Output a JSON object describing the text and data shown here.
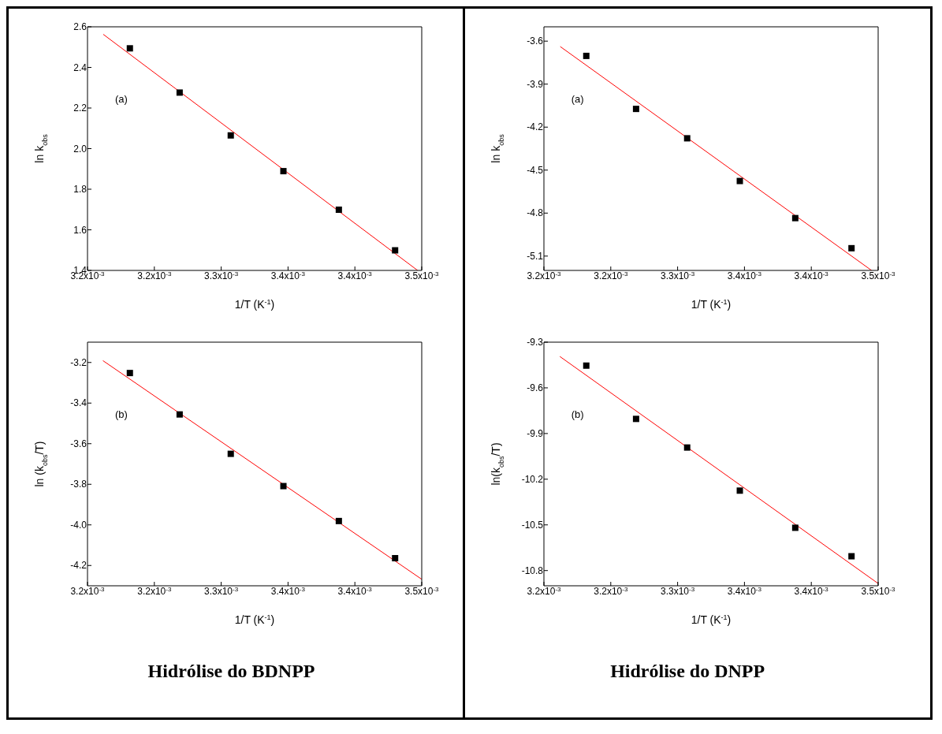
{
  "chart_data": [
    {
      "type": "scatter",
      "xlabel": "1/T (K$^{-1}$)",
      "ylabel": "ln k$_{obs}$",
      "annotations": [
        "(a)"
      ],
      "xlim": [
        0.00318,
        0.003505
      ],
      "xticks": [
        {
          "value": 0.00318,
          "label": "3.2x10$^{-3}$"
        },
        {
          "value": 0.003245,
          "label": "3.2x10$^{-3}$"
        },
        {
          "value": 0.00331,
          "label": "3.3x10$^{-3}$"
        },
        {
          "value": 0.003375,
          "label": "3.4x10$^{-3}$"
        },
        {
          "value": 0.00344,
          "label": "3.4x10$^{-3}$"
        },
        {
          "value": 0.003505,
          "label": "3.5x10$^{-3}$"
        }
      ],
      "ylim": [
        1.4,
        2.6
      ],
      "yticks": [
        1.4,
        1.6,
        1.8,
        {
          "value": 2.0,
          "label": "2.0"
        },
        2.2,
        2.4,
        2.6
      ],
      "grid": false,
      "series": [
        {
          "type": "scatter",
          "marker": "square",
          "color": "#000000",
          "x": [
            0.0032212,
            0.0032696,
            0.0033193,
            0.0033705,
            0.0034244,
            0.0034791
          ],
          "values": [
            2.494,
            2.276,
            2.065,
            1.889,
            1.699,
            1.499
          ]
        },
        {
          "type": "line",
          "color": "#ff0000",
          "x": [
            0.0031953,
            0.003501
          ],
          "values": [
            2.563,
            1.4
          ]
        }
      ]
    },
    {
      "type": "scatter",
      "xlabel": "1/T (K$^{-1}$)",
      "ylabel": "ln (k$_{obs}$/T)",
      "annotations": [
        "(b)",
        "Hidrólise do BDNPP"
      ],
      "xlim": [
        0.00318,
        0.003505
      ],
      "xticks": [
        {
          "value": 0.00318,
          "label": "3.2x10$^{-3}$"
        },
        {
          "value": 0.003245,
          "label": "3.2x10$^{-3}$"
        },
        {
          "value": 0.00331,
          "label": "3.3x10$^{-3}$"
        },
        {
          "value": 0.003375,
          "label": "3.4x10$^{-3}$"
        },
        {
          "value": 0.00344,
          "label": "3.4x10$^{-3}$"
        },
        {
          "value": 0.003505,
          "label": "3.5x10$^{-3}$"
        }
      ],
      "ylim": [
        -4.3,
        -3.1
      ],
      "yticks": [
        -4.2,
        {
          "value": -4.0,
          "label": "-4.0"
        },
        -3.8,
        -3.6,
        -3.4,
        -3.2
      ],
      "grid": false,
      "series": [
        {
          "type": "scatter",
          "marker": "square",
          "color": "#000000",
          "x": [
            0.0032212,
            0.0032696,
            0.0033193,
            0.0033705,
            0.0034244,
            0.0034791
          ],
          "values": [
            -3.252,
            -3.456,
            -3.65,
            -3.809,
            -3.981,
            -4.164
          ]
        },
        {
          "type": "line",
          "color": "#ff0000",
          "x": [
            0.003195,
            0.003505
          ],
          "values": [
            -3.191,
            -4.268
          ]
        }
      ]
    },
    {
      "type": "scatter",
      "xlabel": "1/T (K$^{-1}$)",
      "ylabel": "ln k$_{obs}$",
      "annotations": [
        "(a)"
      ],
      "xlim": [
        0.00318,
        0.003505
      ],
      "xticks": [
        {
          "value": 0.00318,
          "label": "3.2x10$^{-3}$"
        },
        {
          "value": 0.003245,
          "label": "3.2x10$^{-3}$"
        },
        {
          "value": 0.00331,
          "label": "3.3x10$^{-3}$"
        },
        {
          "value": 0.003375,
          "label": "3.4x10$^{-3}$"
        },
        {
          "value": 0.00344,
          "label": "3.4x10$^{-3}$"
        },
        {
          "value": 0.003505,
          "label": "3.5x10$^{-3}$"
        }
      ],
      "ylim": [
        -5.2,
        -3.5
      ],
      "yticks": [
        -5.1,
        -4.8,
        -4.5,
        -4.2,
        -3.9,
        -3.6
      ],
      "grid": false,
      "series": [
        {
          "type": "scatter",
          "marker": "square",
          "color": "#000000",
          "x": [
            0.0032212,
            0.0032696,
            0.0033193,
            0.0033705,
            0.0034244,
            0.0034791
          ],
          "values": [
            -3.703,
            -4.073,
            -4.278,
            -4.576,
            -4.835,
            -5.045
          ]
        },
        {
          "type": "line",
          "color": "#ff0000",
          "x": [
            0.0031959,
            0.0034986
          ],
          "values": [
            -3.638,
            -5.2
          ]
        }
      ]
    },
    {
      "type": "scatter",
      "xlabel": "1/T (K$^{-1}$)",
      "ylabel": "ln(k$_{obs}$/T)",
      "annotations": [
        "(b)",
        "Hidrólise do DNPP"
      ],
      "xlim": [
        0.00318,
        0.003505
      ],
      "xticks": [
        {
          "value": 0.00318,
          "label": "3.2x10$^{-3}$"
        },
        {
          "value": 0.003245,
          "label": "3.2x10$^{-3}$"
        },
        {
          "value": 0.00331,
          "label": "3.3x10$^{-3}$"
        },
        {
          "value": 0.003375,
          "label": "3.4x10$^{-3}$"
        },
        {
          "value": 0.00344,
          "label": "3.4x10$^{-3}$"
        },
        {
          "value": 0.003505,
          "label": "3.5x10$^{-3}$"
        }
      ],
      "ylim": [
        -10.9,
        -9.3
      ],
      "yticks": [
        -10.8,
        -10.5,
        -10.2,
        -9.9,
        -9.6,
        -9.3
      ],
      "grid": false,
      "series": [
        {
          "type": "scatter",
          "marker": "square",
          "color": "#000000",
          "x": [
            0.0032212,
            0.0032696,
            0.0033193,
            0.0033705,
            0.0034244,
            0.0034791
          ],
          "values": [
            -9.454,
            -9.804,
            -9.992,
            -10.275,
            -10.519,
            -10.706
          ]
        },
        {
          "type": "line",
          "color": "#ff0000",
          "x": [
            0.0031955,
            0.003505
          ],
          "values": [
            -9.394,
            -10.885
          ]
        }
      ]
    }
  ]
}
